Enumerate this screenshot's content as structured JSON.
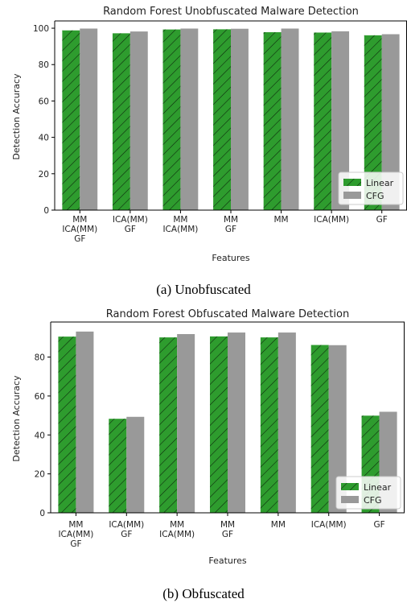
{
  "colors": {
    "linear": "#2e9c2e",
    "cfg": "#999999",
    "hatch": "#0d2a0d"
  },
  "chart_data": [
    {
      "type": "bar",
      "title": "Random Forest Unobfuscated Malware Detection",
      "xlabel": "Features",
      "ylabel": "Detection Accuracy",
      "ylim": [
        0,
        104
      ],
      "yticks": [
        0,
        20,
        40,
        60,
        80,
        100
      ],
      "legend": "bottom-right",
      "grid": false,
      "categories": [
        [
          "MM",
          "ICA(MM)",
          "GF"
        ],
        [
          "ICA(MM)",
          "GF"
        ],
        [
          "MM",
          "ICA(MM)"
        ],
        [
          "MM",
          "GF"
        ],
        [
          "MM"
        ],
        [
          "ICA(MM)"
        ],
        [
          "GF"
        ]
      ],
      "series": [
        {
          "name": "Linear",
          "values": [
            98.8,
            97.2,
            99.3,
            99.4,
            97.8,
            97.6,
            96.1
          ]
        },
        {
          "name": "CFG",
          "values": [
            99.8,
            98.2,
            99.8,
            99.7,
            99.8,
            98.3,
            96.7
          ]
        }
      ],
      "caption": "(a)  Unobfuscated"
    },
    {
      "type": "bar",
      "title": "Random Forest Obfuscated Malware Detection",
      "xlabel": "Features",
      "ylabel": "Detection Accuracy",
      "ylim": [
        0,
        98
      ],
      "yticks": [
        0,
        20,
        40,
        60,
        80
      ],
      "legend": "bottom-right",
      "grid": false,
      "categories": [
        [
          "MM",
          "ICA(MM)",
          "GF"
        ],
        [
          "ICA(MM)",
          "GF"
        ],
        [
          "MM",
          "ICA(MM)"
        ],
        [
          "MM",
          "GF"
        ],
        [
          "MM"
        ],
        [
          "ICA(MM)"
        ],
        [
          "GF"
        ]
      ],
      "series": [
        {
          "name": "Linear",
          "values": [
            90.5,
            48.3,
            90.1,
            90.6,
            90.1,
            86.2,
            49.9
          ]
        },
        {
          "name": "CFG",
          "values": [
            93.1,
            49.3,
            91.8,
            92.6,
            92.6,
            86.1,
            51.9
          ]
        }
      ],
      "caption": "(b)  Obfuscated"
    }
  ]
}
